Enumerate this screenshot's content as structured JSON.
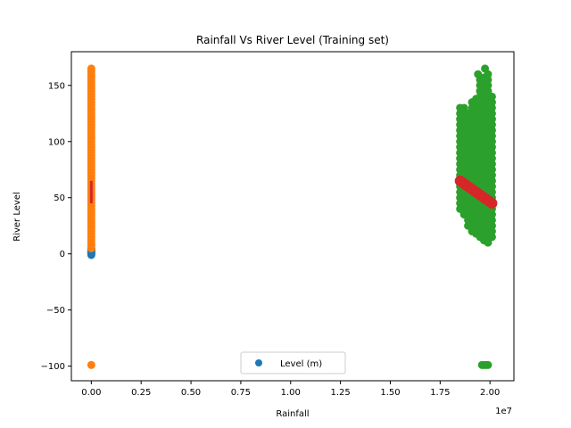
{
  "chart_data": {
    "type": "scatter",
    "title": "Rainfall Vs River Level (Training set)",
    "xlabel": "Rainfall",
    "ylabel": "River Level",
    "x_offset_label": "1e7",
    "xlim": [
      -1000000,
      21200000
    ],
    "ylim": [
      -113,
      180
    ],
    "x_ticks": [
      0,
      2500000,
      5000000,
      7500000,
      10000000,
      12500000,
      15000000,
      17500000,
      20000000
    ],
    "x_tick_labels": [
      "0.00",
      "0.25",
      "0.50",
      "0.75",
      "1.00",
      "1.25",
      "1.50",
      "1.75",
      "2.00"
    ],
    "y_ticks": [
      -100,
      -50,
      0,
      50,
      100,
      150
    ],
    "y_tick_labels": [
      "−100",
      "−50",
      "0",
      "50",
      "100",
      "150"
    ],
    "grid": false,
    "legend": {
      "placement": "lower center",
      "entries": [
        "Level (m)"
      ]
    },
    "series": [
      {
        "name": "Level (m)",
        "kind": "scatter",
        "color": "#1f77b4",
        "points": [
          [
            0,
            0
          ],
          [
            0,
            1
          ],
          [
            0,
            2
          ],
          [
            0,
            3
          ],
          [
            0,
            4
          ],
          [
            0,
            5
          ],
          [
            0,
            -1
          ],
          [
            0,
            0.5
          ],
          [
            0,
            1.5
          ]
        ]
      },
      {
        "kind": "scatter",
        "color": "#ff7f0e",
        "x_const": 0,
        "y_from": 5,
        "y_to": 165,
        "y_step": 2.5,
        "extra_points": [
          [
            0,
            -99
          ]
        ]
      },
      {
        "kind": "scatter",
        "color": "#2ca02c",
        "x_values": [
          18500000,
          18700000,
          18900000,
          19100000,
          19300000,
          19500000,
          19700000,
          19900000,
          20100000
        ],
        "y_low": [
          40,
          35,
          25,
          20,
          18,
          15,
          12,
          10,
          15
        ],
        "y_high": [
          130,
          130,
          125,
          135,
          140,
          155,
          160,
          160,
          140
        ],
        "y_step": 5,
        "extra_points": [
          [
            19400000,
            160
          ],
          [
            19750000,
            165
          ],
          [
            19600000,
            -99
          ],
          [
            19700000,
            -99
          ],
          [
            19800000,
            -99
          ],
          [
            19900000,
            -99
          ]
        ]
      },
      {
        "kind": "line",
        "color": "#d62728",
        "points": [
          [
            18500000,
            65
          ],
          [
            20100000,
            45
          ]
        ]
      },
      {
        "kind": "line",
        "color": "#d62728",
        "points": [
          [
            0,
            45
          ],
          [
            0,
            65
          ]
        ]
      }
    ]
  }
}
